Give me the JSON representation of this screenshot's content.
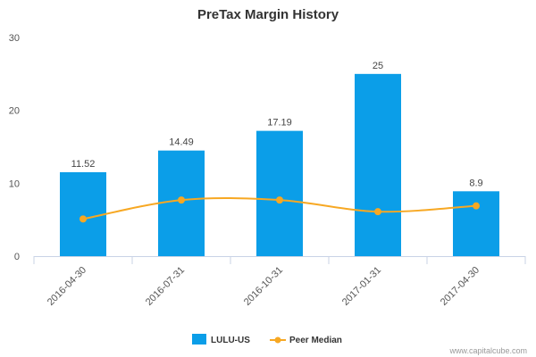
{
  "chart_data": {
    "type": "bar",
    "title": "PreTax Margin History",
    "categories": [
      "2016-04-30",
      "2016-07-31",
      "2016-10-31",
      "2017-01-31",
      "2017-04-30"
    ],
    "series": [
      {
        "name": "LULU-US",
        "type": "bar",
        "values": [
          11.52,
          14.49,
          17.19,
          25,
          8.9
        ],
        "data_labels": [
          "11.52",
          "14.49",
          "17.19",
          "25",
          "8.9"
        ]
      },
      {
        "name": "Peer Median",
        "type": "line",
        "values": [
          5.1,
          7.7,
          7.7,
          6.1,
          6.9
        ]
      }
    ],
    "ylim": [
      0,
      30
    ],
    "yticks": [
      0,
      10,
      20,
      30
    ],
    "grid": false,
    "legend_position": "bottom-center"
  },
  "colors": {
    "bar": "#0b9ee8",
    "line": "#f7a823",
    "axis": "#c8d3e6"
  },
  "credit": "www.capitalcube.com"
}
